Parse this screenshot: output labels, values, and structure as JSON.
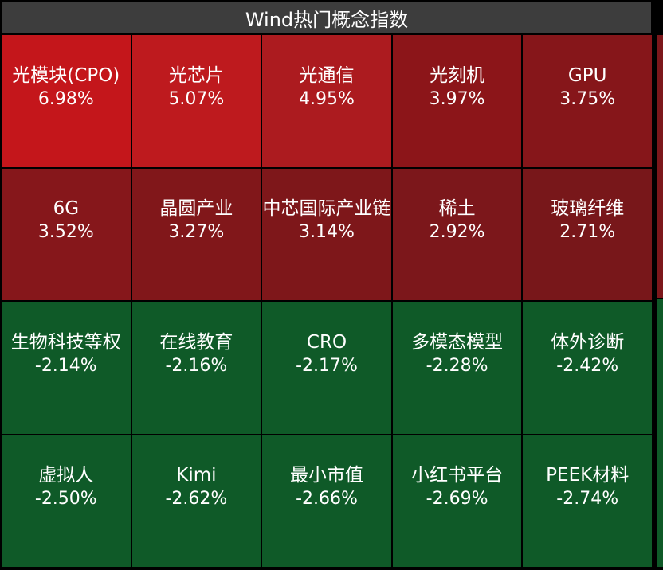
{
  "title": "Wind热门概念指数",
  "cells": [
    {
      "name": "光模块(CPO)",
      "pct": "6.98%",
      "color": "#c4161b"
    },
    {
      "name": "光芯片",
      "pct": "5.07%",
      "color": "#be1a1e"
    },
    {
      "name": "光通信",
      "pct": "4.95%",
      "color": "#ac1b1f"
    },
    {
      "name": "光刻机",
      "pct": "3.97%",
      "color": "#8c1519"
    },
    {
      "name": "GPU",
      "pct": "3.75%",
      "color": "#86161a"
    },
    {
      "name": "6G",
      "pct": "3.52%",
      "color": "#86171b"
    },
    {
      "name": "晶圆产业",
      "pct": "3.27%",
      "color": "#81171a"
    },
    {
      "name": "中芯国际产业链",
      "pct": "3.14%",
      "color": "#7e171a"
    },
    {
      "name": "稀土",
      "pct": "2.92%",
      "color": "#7c171b"
    },
    {
      "name": "玻璃纤维",
      "pct": "2.71%",
      "color": "#78171a"
    },
    {
      "name": "生物科技等权",
      "pct": "-2.14%",
      "color": "#0f5a28"
    },
    {
      "name": "在线教育",
      "pct": "-2.16%",
      "color": "#0f5a28"
    },
    {
      "name": "CRO",
      "pct": "-2.17%",
      "color": "#0f5a28"
    },
    {
      "name": "多模态模型",
      "pct": "-2.28%",
      "color": "#0f5a28"
    },
    {
      "name": "体外诊断",
      "pct": "-2.42%",
      "color": "#0f5a28"
    },
    {
      "name": "虚拟人",
      "pct": "-2.50%",
      "color": "#0f5a28"
    },
    {
      "name": "Kimi",
      "pct": "-2.62%",
      "color": "#0f5a28"
    },
    {
      "name": "最小市值",
      "pct": "-2.66%",
      "color": "#0f5a28"
    },
    {
      "name": "小红书平台",
      "pct": "-2.69%",
      "color": "#0f5a28"
    },
    {
      "name": "PEEK材料",
      "pct": "-2.74%",
      "color": "#0f5a28"
    }
  ],
  "colors": {
    "background": "#000000",
    "title_bar": "#3d3d3d",
    "text": "#ffffff"
  }
}
